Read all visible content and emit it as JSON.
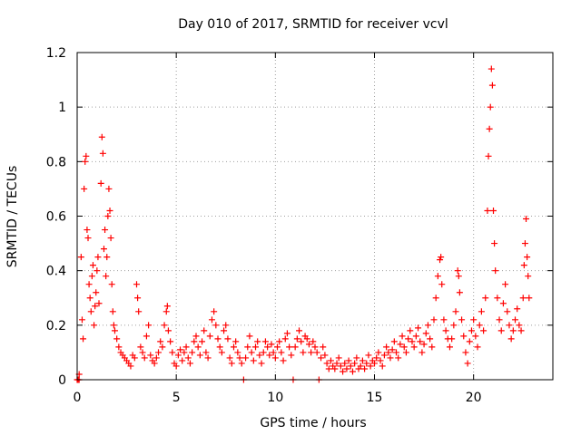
{
  "chart_data": {
    "type": "scatter",
    "title": "Day 010 of 2017, SRMTID for receiver vcvl",
    "xlabel": "GPS time / hours",
    "ylabel": "SRMTID / TECUs",
    "xlim": [
      0,
      24
    ],
    "ylim": [
      0,
      1.2
    ],
    "xticks": [
      0,
      5,
      10,
      15,
      20
    ],
    "xtick_labels": [
      "0",
      "5",
      "10",
      "15",
      "20"
    ],
    "yticks": [
      0,
      0.2,
      0.4,
      0.6,
      0.8,
      1.0,
      1.2
    ],
    "ytick_labels": [
      "0",
      "0.2",
      "0.4",
      "0.6",
      "0.8",
      "1",
      "1.2"
    ],
    "grid": true,
    "marker": "+",
    "series": [
      {
        "name": "SRMTID",
        "color": "#ff0000",
        "points": [
          [
            0.0,
            0.0
          ],
          [
            0.05,
            0.0
          ],
          [
            0.1,
            0.0
          ],
          [
            0.1,
            0.02
          ],
          [
            0.2,
            0.45
          ],
          [
            0.25,
            0.22
          ],
          [
            0.3,
            0.15
          ],
          [
            0.35,
            0.7
          ],
          [
            0.4,
            0.8
          ],
          [
            0.45,
            0.82
          ],
          [
            0.5,
            0.55
          ],
          [
            0.55,
            0.52
          ],
          [
            0.6,
            0.35
          ],
          [
            0.65,
            0.3
          ],
          [
            0.7,
            0.25
          ],
          [
            0.75,
            0.38
          ],
          [
            0.8,
            0.42
          ],
          [
            0.85,
            0.2
          ],
          [
            0.9,
            0.27
          ],
          [
            0.95,
            0.32
          ],
          [
            1.0,
            0.4
          ],
          [
            1.05,
            0.45
          ],
          [
            1.1,
            0.28
          ],
          [
            1.2,
            0.72
          ],
          [
            1.25,
            0.89
          ],
          [
            1.3,
            0.83
          ],
          [
            1.35,
            0.48
          ],
          [
            1.4,
            0.55
          ],
          [
            1.45,
            0.38
          ],
          [
            1.5,
            0.45
          ],
          [
            1.55,
            0.6
          ],
          [
            1.6,
            0.7
          ],
          [
            1.65,
            0.62
          ],
          [
            1.7,
            0.52
          ],
          [
            1.75,
            0.35
          ],
          [
            1.8,
            0.25
          ],
          [
            1.85,
            0.2
          ],
          [
            1.9,
            0.18
          ],
          [
            2.0,
            0.15
          ],
          [
            2.1,
            0.12
          ],
          [
            2.2,
            0.1
          ],
          [
            2.3,
            0.09
          ],
          [
            2.4,
            0.08
          ],
          [
            2.5,
            0.07
          ],
          [
            2.6,
            0.06
          ],
          [
            2.7,
            0.05
          ],
          [
            2.8,
            0.09
          ],
          [
            2.9,
            0.08
          ],
          [
            3.0,
            0.35
          ],
          [
            3.05,
            0.3
          ],
          [
            3.1,
            0.25
          ],
          [
            3.2,
            0.12
          ],
          [
            3.3,
            0.1
          ],
          [
            3.4,
            0.08
          ],
          [
            3.5,
            0.16
          ],
          [
            3.6,
            0.2
          ],
          [
            3.7,
            0.09
          ],
          [
            3.8,
            0.07
          ],
          [
            3.9,
            0.06
          ],
          [
            4.0,
            0.08
          ],
          [
            4.1,
            0.1
          ],
          [
            4.2,
            0.14
          ],
          [
            4.3,
            0.12
          ],
          [
            4.4,
            0.2
          ],
          [
            4.5,
            0.25
          ],
          [
            4.55,
            0.27
          ],
          [
            4.6,
            0.18
          ],
          [
            4.7,
            0.14
          ],
          [
            4.8,
            0.1
          ],
          [
            4.9,
            0.06
          ],
          [
            5.0,
            0.05
          ],
          [
            5.1,
            0.09
          ],
          [
            5.2,
            0.11
          ],
          [
            5.3,
            0.07
          ],
          [
            5.4,
            0.1
          ],
          [
            5.5,
            0.12
          ],
          [
            5.6,
            0.08
          ],
          [
            5.7,
            0.06
          ],
          [
            5.8,
            0.1
          ],
          [
            5.9,
            0.14
          ],
          [
            6.0,
            0.16
          ],
          [
            6.1,
            0.12
          ],
          [
            6.2,
            0.09
          ],
          [
            6.3,
            0.14
          ],
          [
            6.4,
            0.18
          ],
          [
            6.5,
            0.1
          ],
          [
            6.6,
            0.08
          ],
          [
            6.7,
            0.16
          ],
          [
            6.8,
            0.22
          ],
          [
            6.9,
            0.25
          ],
          [
            7.0,
            0.2
          ],
          [
            7.1,
            0.15
          ],
          [
            7.2,
            0.12
          ],
          [
            7.3,
            0.1
          ],
          [
            7.4,
            0.18
          ],
          [
            7.5,
            0.2
          ],
          [
            7.6,
            0.15
          ],
          [
            7.7,
            0.08
          ],
          [
            7.8,
            0.06
          ],
          [
            7.9,
            0.12
          ],
          [
            8.0,
            0.14
          ],
          [
            8.1,
            0.1
          ],
          [
            8.2,
            0.08
          ],
          [
            8.3,
            0.06
          ],
          [
            8.4,
            0.0
          ],
          [
            8.5,
            0.08
          ],
          [
            8.6,
            0.12
          ],
          [
            8.7,
            0.16
          ],
          [
            8.8,
            0.1
          ],
          [
            8.9,
            0.07
          ],
          [
            9.0,
            0.12
          ],
          [
            9.1,
            0.14
          ],
          [
            9.2,
            0.09
          ],
          [
            9.3,
            0.06
          ],
          [
            9.4,
            0.1
          ],
          [
            9.5,
            0.14
          ],
          [
            9.6,
            0.12
          ],
          [
            9.7,
            0.09
          ],
          [
            9.8,
            0.13
          ],
          [
            9.9,
            0.1
          ],
          [
            10.0,
            0.08
          ],
          [
            10.1,
            0.12
          ],
          [
            10.2,
            0.14
          ],
          [
            10.3,
            0.1
          ],
          [
            10.4,
            0.07
          ],
          [
            10.5,
            0.15
          ],
          [
            10.6,
            0.17
          ],
          [
            10.7,
            0.12
          ],
          [
            10.8,
            0.09
          ],
          [
            10.9,
            0.0
          ],
          [
            11.0,
            0.12
          ],
          [
            11.1,
            0.15
          ],
          [
            11.2,
            0.18
          ],
          [
            11.3,
            0.14
          ],
          [
            11.4,
            0.1
          ],
          [
            11.5,
            0.16
          ],
          [
            11.6,
            0.15
          ],
          [
            11.7,
            0.13
          ],
          [
            11.8,
            0.1
          ],
          [
            11.9,
            0.14
          ],
          [
            12.0,
            0.12
          ],
          [
            12.1,
            0.1
          ],
          [
            12.2,
            0.0
          ],
          [
            12.3,
            0.08
          ],
          [
            12.4,
            0.12
          ],
          [
            12.5,
            0.09
          ],
          [
            12.6,
            0.06
          ],
          [
            12.7,
            0.04
          ],
          [
            12.8,
            0.07
          ],
          [
            12.9,
            0.05
          ],
          [
            13.0,
            0.04
          ],
          [
            13.1,
            0.06
          ],
          [
            13.2,
            0.08
          ],
          [
            13.3,
            0.05
          ],
          [
            13.4,
            0.03
          ],
          [
            13.5,
            0.06
          ],
          [
            13.6,
            0.04
          ],
          [
            13.7,
            0.07
          ],
          [
            13.8,
            0.05
          ],
          [
            13.9,
            0.03
          ],
          [
            14.0,
            0.06
          ],
          [
            14.1,
            0.08
          ],
          [
            14.2,
            0.04
          ],
          [
            14.3,
            0.05
          ],
          [
            14.4,
            0.07
          ],
          [
            14.5,
            0.04
          ],
          [
            14.6,
            0.06
          ],
          [
            14.7,
            0.09
          ],
          [
            14.8,
            0.05
          ],
          [
            14.9,
            0.07
          ],
          [
            15.0,
            0.06
          ],
          [
            15.1,
            0.08
          ],
          [
            15.2,
            0.1
          ],
          [
            15.3,
            0.07
          ],
          [
            15.4,
            0.05
          ],
          [
            15.5,
            0.09
          ],
          [
            15.6,
            0.12
          ],
          [
            15.7,
            0.1
          ],
          [
            15.8,
            0.08
          ],
          [
            15.9,
            0.11
          ],
          [
            16.0,
            0.14
          ],
          [
            16.1,
            0.1
          ],
          [
            16.2,
            0.08
          ],
          [
            16.3,
            0.13
          ],
          [
            16.4,
            0.16
          ],
          [
            16.5,
            0.12
          ],
          [
            16.6,
            0.1
          ],
          [
            16.7,
            0.15
          ],
          [
            16.8,
            0.18
          ],
          [
            16.9,
            0.14
          ],
          [
            17.0,
            0.12
          ],
          [
            17.1,
            0.16
          ],
          [
            17.2,
            0.19
          ],
          [
            17.3,
            0.14
          ],
          [
            17.4,
            0.1
          ],
          [
            17.5,
            0.13
          ],
          [
            17.6,
            0.17
          ],
          [
            17.7,
            0.2
          ],
          [
            17.8,
            0.15
          ],
          [
            17.9,
            0.12
          ],
          [
            18.0,
            0.22
          ],
          [
            18.1,
            0.3
          ],
          [
            18.2,
            0.38
          ],
          [
            18.3,
            0.44
          ],
          [
            18.35,
            0.45
          ],
          [
            18.4,
            0.35
          ],
          [
            18.5,
            0.22
          ],
          [
            18.6,
            0.18
          ],
          [
            18.7,
            0.15
          ],
          [
            18.8,
            0.12
          ],
          [
            18.9,
            0.15
          ],
          [
            19.0,
            0.2
          ],
          [
            19.1,
            0.25
          ],
          [
            19.2,
            0.4
          ],
          [
            19.25,
            0.38
          ],
          [
            19.3,
            0.32
          ],
          [
            19.4,
            0.22
          ],
          [
            19.5,
            0.16
          ],
          [
            19.6,
            0.1
          ],
          [
            19.7,
            0.06
          ],
          [
            19.8,
            0.14
          ],
          [
            19.9,
            0.18
          ],
          [
            20.0,
            0.22
          ],
          [
            20.1,
            0.16
          ],
          [
            20.2,
            0.12
          ],
          [
            20.3,
            0.2
          ],
          [
            20.4,
            0.25
          ],
          [
            20.5,
            0.18
          ],
          [
            20.6,
            0.3
          ],
          [
            20.7,
            0.62
          ],
          [
            20.75,
            0.82
          ],
          [
            20.8,
            0.92
          ],
          [
            20.85,
            1.0
          ],
          [
            20.9,
            1.14
          ],
          [
            20.95,
            1.08
          ],
          [
            21.0,
            0.62
          ],
          [
            21.05,
            0.5
          ],
          [
            21.1,
            0.4
          ],
          [
            21.2,
            0.3
          ],
          [
            21.3,
            0.22
          ],
          [
            21.4,
            0.18
          ],
          [
            21.5,
            0.28
          ],
          [
            21.6,
            0.35
          ],
          [
            21.7,
            0.25
          ],
          [
            21.8,
            0.2
          ],
          [
            21.9,
            0.15
          ],
          [
            22.0,
            0.18
          ],
          [
            22.1,
            0.22
          ],
          [
            22.2,
            0.26
          ],
          [
            22.3,
            0.2
          ],
          [
            22.4,
            0.18
          ],
          [
            22.5,
            0.3
          ],
          [
            22.55,
            0.42
          ],
          [
            22.6,
            0.5
          ],
          [
            22.65,
            0.59
          ],
          [
            22.7,
            0.45
          ],
          [
            22.75,
            0.38
          ],
          [
            22.8,
            0.3
          ]
        ]
      }
    ]
  }
}
